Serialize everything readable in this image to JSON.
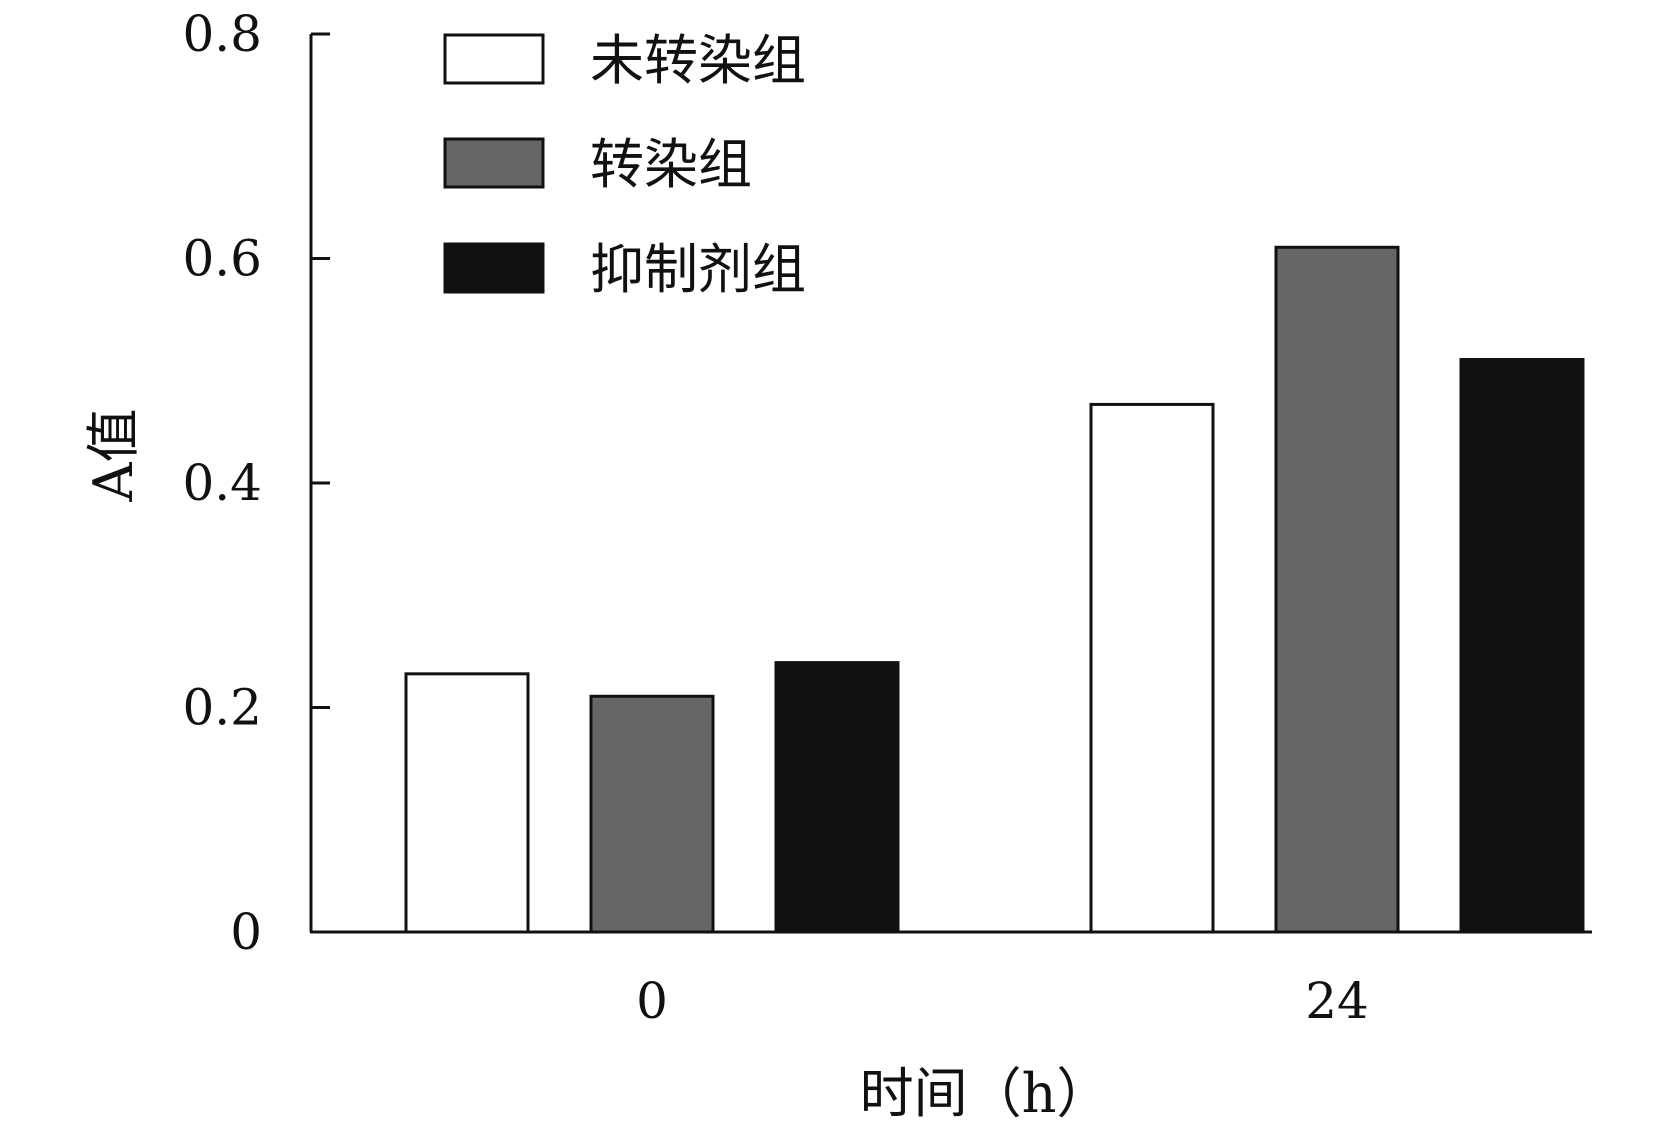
{
  "chart_data": {
    "type": "bar",
    "title": "",
    "xlabel": "时间（h）",
    "ylabel": "A值",
    "categories": [
      "0",
      "24"
    ],
    "series": [
      {
        "name": "未转染组",
        "values": [
          0.23,
          0.47
        ],
        "color": "#ffffff"
      },
      {
        "name": "转染组",
        "values": [
          0.21,
          0.61
        ],
        "color": "#666666"
      },
      {
        "name": "抑制剂组",
        "values": [
          0.24,
          0.51
        ],
        "color": "#111111"
      }
    ],
    "ylim": [
      0,
      0.8
    ],
    "yticks": [
      "0",
      "0.2",
      "0.4",
      "0.6",
      "0.8"
    ],
    "grid": false,
    "legend_position": "top-left"
  }
}
